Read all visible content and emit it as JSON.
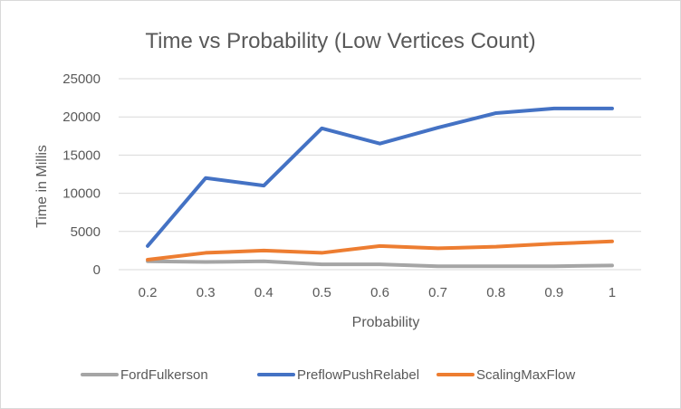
{
  "chart_data": {
    "type": "line",
    "title": "Time vs Probability (Low Vertices Count)",
    "xlabel": "Probability",
    "ylabel": "Time in Millis",
    "categories": [
      "0.2",
      "0.3",
      "0.4",
      "0.5",
      "0.6",
      "0.7",
      "0.8",
      "0.9",
      "1"
    ],
    "ylim": [
      0,
      25000
    ],
    "yticks": [
      0,
      5000,
      10000,
      15000,
      20000,
      25000
    ],
    "grid": true,
    "legend_position": "bottom",
    "series": [
      {
        "name": "FordFulkerson",
        "color": "#a5a5a5",
        "values": [
          1100,
          1000,
          1100,
          700,
          700,
          450,
          450,
          450,
          550
        ]
      },
      {
        "name": "PreflowPushRelabel",
        "color": "#4472c4",
        "values": [
          3100,
          12000,
          11000,
          18500,
          16500,
          18600,
          20500,
          21100,
          21100
        ]
      },
      {
        "name": "ScalingMaxFlow",
        "color": "#ed7d31",
        "values": [
          1300,
          2200,
          2500,
          2200,
          3100,
          2800,
          3000,
          3400,
          3700
        ]
      }
    ]
  }
}
